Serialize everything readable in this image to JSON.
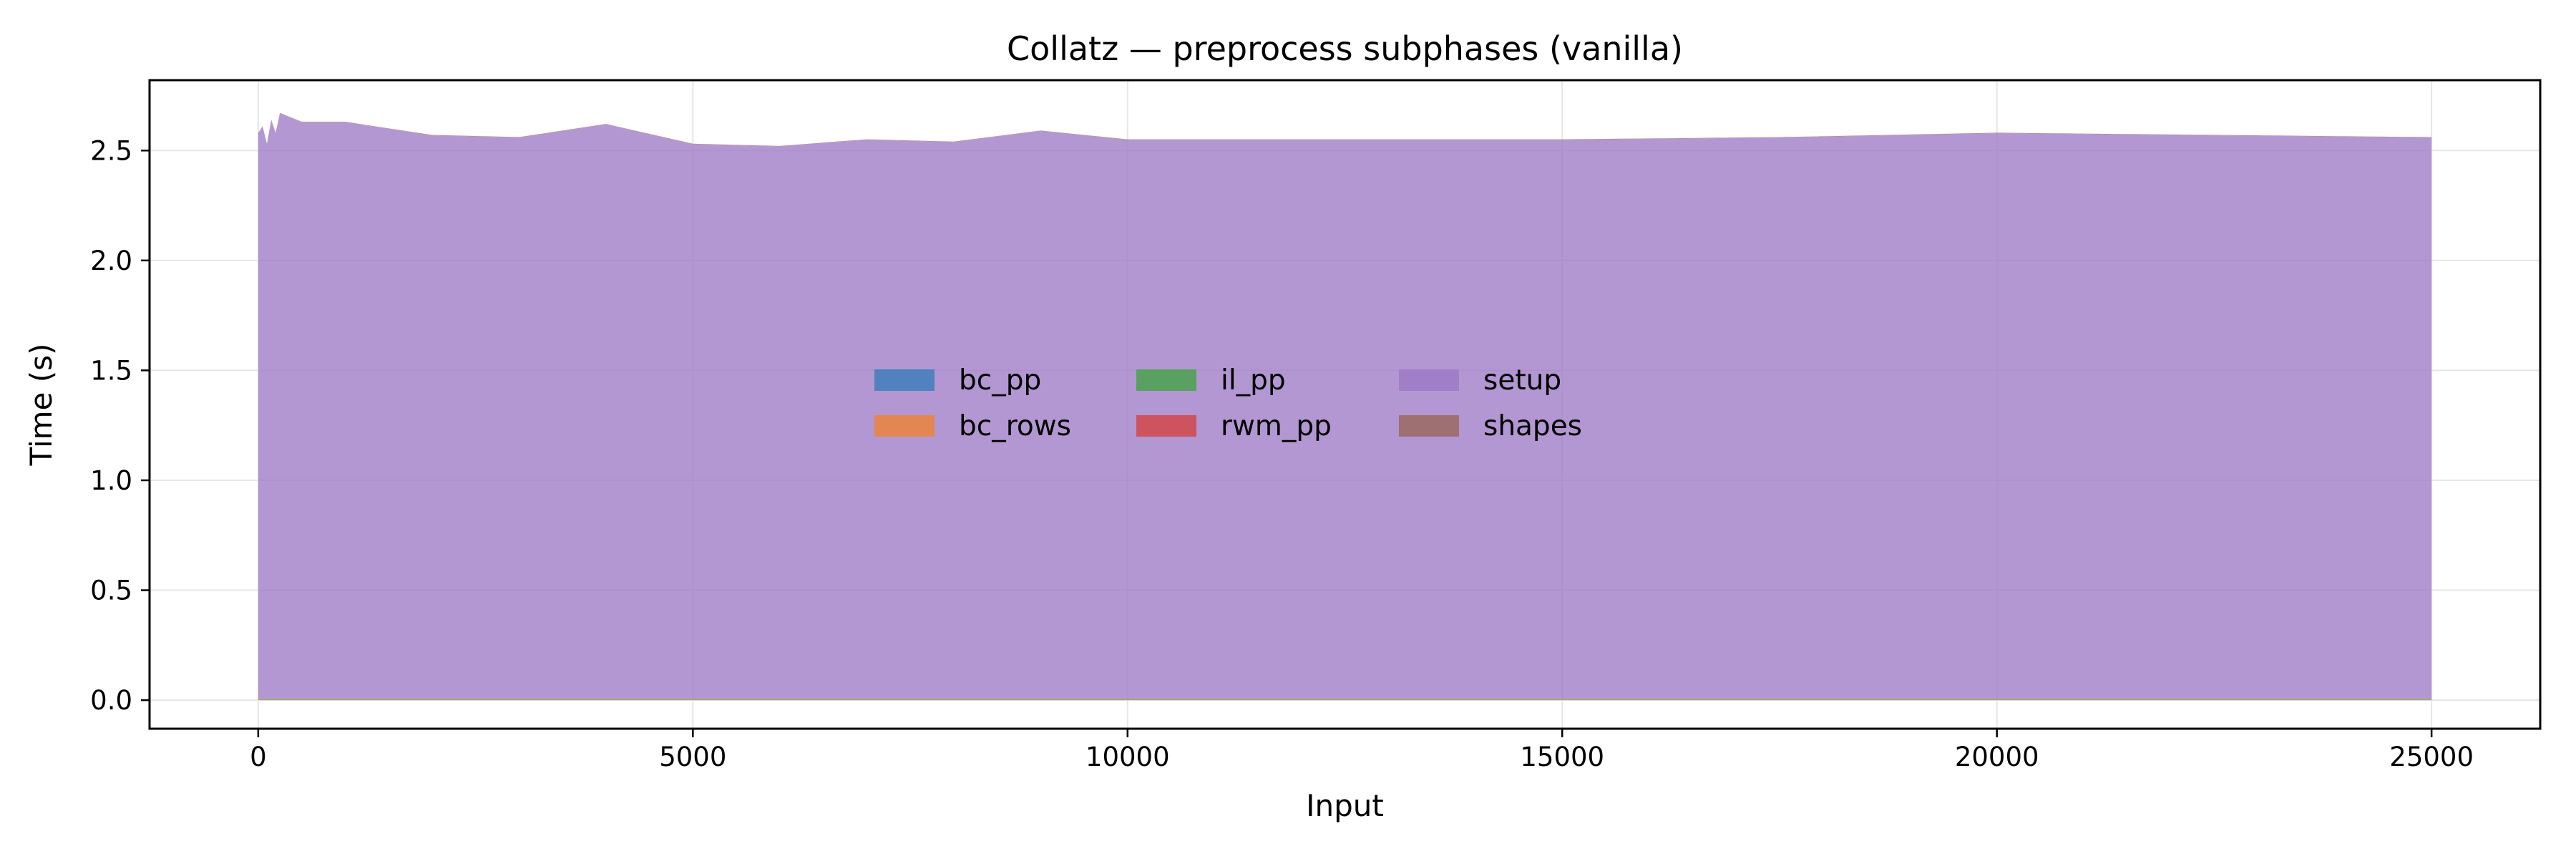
{
  "chart_data": {
    "type": "area",
    "stacked": true,
    "title": "Collatz — preprocess subphases (vanilla)",
    "xlabel": "Input",
    "ylabel": "Time (s)",
    "xlim": [
      -1250,
      26250
    ],
    "ylim": [
      -0.13,
      2.82
    ],
    "xticks": [
      0,
      5000,
      10000,
      15000,
      20000,
      25000
    ],
    "xtick_labels": [
      "0",
      "5000",
      "10000",
      "15000",
      "20000",
      "25000"
    ],
    "yticks": [
      0.0,
      0.5,
      1.0,
      1.5,
      2.0,
      2.5
    ],
    "ytick_labels": [
      "0.0",
      "0.5",
      "1.0",
      "1.5",
      "2.0",
      "2.5"
    ],
    "grid": true,
    "legend_position": "center",
    "legend_columns": 4,
    "x": [
      1,
      50,
      100,
      150,
      200,
      250,
      500,
      750,
      1000,
      2000,
      3000,
      4000,
      5000,
      6000,
      7000,
      8000,
      9000,
      10000,
      15000,
      17500,
      20000,
      25000
    ],
    "series": [
      {
        "name": "bc_pp",
        "color": "#4c7fbd",
        "values": [
          0.002,
          0.002,
          0.002,
          0.002,
          0.002,
          0.002,
          0.002,
          0.002,
          0.002,
          0.002,
          0.002,
          0.002,
          0.002,
          0.002,
          0.002,
          0.002,
          0.002,
          0.002,
          0.002,
          0.002,
          0.002,
          0.002
        ]
      },
      {
        "name": "bc_rows",
        "color": "#e6864b",
        "values": [
          0.002,
          0.002,
          0.002,
          0.002,
          0.002,
          0.002,
          0.002,
          0.002,
          0.002,
          0.002,
          0.002,
          0.002,
          0.002,
          0.002,
          0.002,
          0.002,
          0.002,
          0.002,
          0.002,
          0.002,
          0.002,
          0.002
        ]
      },
      {
        "name": "il_pp",
        "color": "#55a05a",
        "values": [
          0.003,
          0.003,
          0.003,
          0.003,
          0.003,
          0.003,
          0.003,
          0.003,
          0.003,
          0.003,
          0.003,
          0.003,
          0.003,
          0.003,
          0.003,
          0.003,
          0.003,
          0.003,
          0.003,
          0.003,
          0.003,
          0.003
        ]
      },
      {
        "name": "rwm_pp",
        "color": "#cf4f58",
        "values": [
          0.002,
          0.002,
          0.002,
          0.002,
          0.002,
          0.002,
          0.002,
          0.002,
          0.002,
          0.002,
          0.002,
          0.002,
          0.002,
          0.002,
          0.002,
          0.002,
          0.002,
          0.002,
          0.002,
          0.002,
          0.002,
          0.002
        ]
      },
      {
        "name": "setup",
        "color": "#a07dc7",
        "values": [
          2.57,
          2.6,
          2.52,
          2.63,
          2.57,
          2.66,
          2.62,
          2.62,
          2.62,
          2.56,
          2.55,
          2.61,
          2.52,
          2.51,
          2.54,
          2.53,
          2.58,
          2.54,
          2.54,
          2.55,
          2.57,
          2.55
        ]
      },
      {
        "name": "shapes",
        "color": "#9e6e6b",
        "values": [
          0.002,
          0.002,
          0.002,
          0.002,
          0.002,
          0.002,
          0.002,
          0.002,
          0.002,
          0.002,
          0.002,
          0.002,
          0.002,
          0.002,
          0.002,
          0.002,
          0.002,
          0.002,
          0.002,
          0.002,
          0.002,
          0.002
        ]
      }
    ]
  }
}
